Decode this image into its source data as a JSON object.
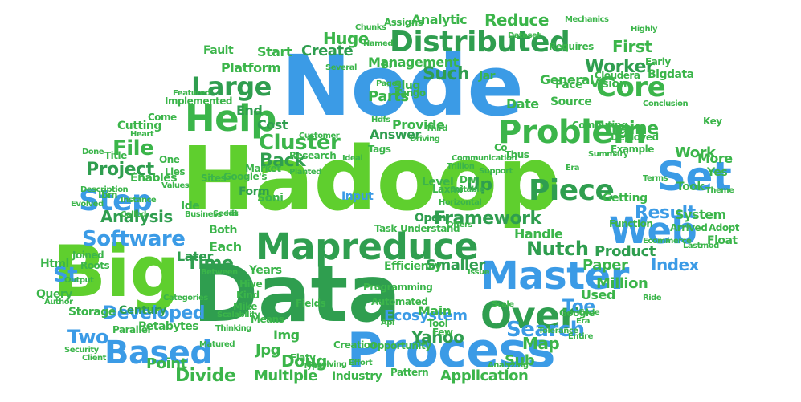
{
  "colors": {
    "green_bright": "#5fcf2e",
    "green_dark": "#2f9e4f",
    "green_mid": "#3bb54a",
    "blue": "#3b9be6",
    "blue_dark": "#2d7fd6",
    "background": "#ffffff"
  },
  "words": [
    {
      "text": "Hadoop",
      "color": "green_bright"
    },
    {
      "text": "Node",
      "color": "blue"
    },
    {
      "text": "Data",
      "color": "green_dark"
    },
    {
      "text": "Big",
      "color": "green_bright"
    },
    {
      "text": "Process",
      "color": "blue"
    },
    {
      "text": "Mapreduce",
      "color": "green_dark"
    },
    {
      "text": "Master",
      "color": "blue"
    },
    {
      "text": "Problem",
      "color": "green_mid"
    },
    {
      "text": "Help",
      "color": "green_mid"
    },
    {
      "text": "Set",
      "color": "blue"
    },
    {
      "text": "Web",
      "color": "blue"
    },
    {
      "text": "Over",
      "color": "green_dark"
    },
    {
      "text": "Distributed",
      "color": "green_dark"
    },
    {
      "text": "Step",
      "color": "blue"
    },
    {
      "text": "Based",
      "color": "blue"
    },
    {
      "text": "Piece",
      "color": "green_dark"
    },
    {
      "text": "Core",
      "color": "green_mid"
    },
    {
      "text": "Large",
      "color": "green_dark"
    },
    {
      "text": "Software",
      "color": "blue"
    },
    {
      "text": "Cluster",
      "color": "green_mid"
    },
    {
      "text": "File",
      "color": "green_mid"
    },
    {
      "text": "Nutch",
      "color": "green_dark"
    },
    {
      "text": "Search",
      "color": "blue"
    },
    {
      "text": "Framework",
      "color": "green_dark"
    },
    {
      "text": "Developed",
      "color": "blue"
    },
    {
      "text": "Project",
      "color": "green_dark"
    },
    {
      "text": "Engine",
      "color": "green_mid"
    },
    {
      "text": "Worker",
      "color": "green_dark"
    },
    {
      "text": "Result",
      "color": "blue"
    },
    {
      "text": "Reduce",
      "color": "green_mid"
    },
    {
      "text": "Huge",
      "color": "green_mid"
    },
    {
      "text": "Such",
      "color": "green_dark"
    },
    {
      "text": "First",
      "color": "green_mid"
    },
    {
      "text": "Back",
      "color": "green_dark"
    },
    {
      "text": "Time",
      "color": "green_dark"
    },
    {
      "text": "Parts",
      "color": "green_mid"
    },
    {
      "text": "Up",
      "color": "green_dark"
    },
    {
      "text": "Toe",
      "color": "blue"
    },
    {
      "text": "Map",
      "color": "green_mid"
    },
    {
      "text": "Divide",
      "color": "green_mid"
    },
    {
      "text": "Two",
      "color": "blue"
    },
    {
      "text": "Yahoo",
      "color": "green_dark"
    },
    {
      "text": "Sub",
      "color": "green_mid"
    },
    {
      "text": "Index",
      "color": "blue"
    },
    {
      "text": "St",
      "color": "blue"
    },
    {
      "text": "Ecosystem",
      "color": "blue"
    },
    {
      "text": "Doug",
      "color": "green_mid"
    },
    {
      "text": "Multiple",
      "color": "green_mid"
    },
    {
      "text": "Application",
      "color": "green_mid"
    },
    {
      "text": "Million",
      "color": "green_mid"
    },
    {
      "text": "Paper",
      "color": "green_mid"
    },
    {
      "text": "Product",
      "color": "green_dark"
    },
    {
      "text": "Smaller",
      "color": "green_dark"
    },
    {
      "text": "Handle",
      "color": "green_mid"
    },
    {
      "text": "Analysis",
      "color": "green_dark"
    },
    {
      "text": "Management",
      "color": "green_mid"
    },
    {
      "text": "Platform",
      "color": "green_mid"
    },
    {
      "text": "Create",
      "color": "green_dark"
    },
    {
      "text": "Start",
      "color": "green_mid"
    },
    {
      "text": "Provide",
      "color": "green_mid"
    },
    {
      "text": "Answer",
      "color": "green_dark"
    },
    {
      "text": "Work",
      "color": "green_mid"
    },
    {
      "text": "System",
      "color": "green_mid"
    },
    {
      "text": "Used",
      "color": "green_mid"
    },
    {
      "text": "Soni",
      "color": "green_mid"
    },
    {
      "text": "Level",
      "color": "green_mid"
    },
    {
      "text": "Input",
      "color": "blue"
    },
    {
      "text": "Jpg",
      "color": "green_mid"
    },
    {
      "text": "Img",
      "color": "green_mid"
    },
    {
      "text": "Point",
      "color": "green_mid"
    },
    {
      "text": "Industry",
      "color": "green_mid"
    },
    {
      "text": "Form",
      "color": "green_dark"
    },
    {
      "text": "Cost",
      "color": "green_dark"
    },
    {
      "text": "Date",
      "color": "green_mid"
    },
    {
      "text": "Efficiency",
      "color": "green_mid"
    },
    {
      "text": "Years",
      "color": "green_mid"
    },
    {
      "text": "Each",
      "color": "green_mid"
    },
    {
      "text": "Both",
      "color": "green_mid"
    },
    {
      "text": "Later",
      "color": "green_dark"
    },
    {
      "text": "Open",
      "color": "green_dark"
    },
    {
      "text": "Main",
      "color": "green_mid"
    },
    {
      "text": "Hive",
      "color": "green_mid"
    },
    {
      "text": "Kind",
      "color": "green_mid"
    },
    {
      "text": "Mike",
      "color": "green_mid"
    },
    {
      "text": "Storage",
      "color": "green_mid"
    },
    {
      "text": "Century",
      "color": "green_dark"
    },
    {
      "text": "Petabytes",
      "color": "green_mid"
    },
    {
      "text": "Parallel",
      "color": "green_mid"
    },
    {
      "text": "Query",
      "color": "green_mid"
    },
    {
      "text": "Html",
      "color": "green_mid"
    },
    {
      "text": "Tags",
      "color": "green_mid"
    },
    {
      "text": "Slug",
      "color": "green_mid"
    },
    {
      "text": "Tango",
      "color": "green_mid"
    },
    {
      "text": "End",
      "color": "green_dark"
    },
    {
      "text": "Fault",
      "color": "green_mid"
    },
    {
      "text": "Implemented",
      "color": "green_mid"
    },
    {
      "text": "Featured",
      "color": "green_mid"
    },
    {
      "text": "Cutting",
      "color": "green_mid"
    },
    {
      "text": "Come",
      "color": "green_mid"
    },
    {
      "text": "Enables",
      "color": "green_mid"
    },
    {
      "text": "Ide",
      "color": "green_mid"
    },
    {
      "text": "Jar",
      "color": "green_mid"
    },
    {
      "text": "General",
      "color": "green_mid"
    },
    {
      "text": "Vision",
      "color": "green_mid"
    },
    {
      "text": "Source",
      "color": "green_mid"
    },
    {
      "text": "Took",
      "color": "green_mid"
    },
    {
      "text": "More",
      "color": "green_mid"
    },
    {
      "text": "Yes",
      "color": "green_mid"
    },
    {
      "text": "Getting",
      "color": "green_mid"
    },
    {
      "text": "Function",
      "color": "green_mid"
    },
    {
      "text": "Bigdata",
      "color": "green_mid"
    },
    {
      "text": "Requires",
      "color": "green_mid"
    },
    {
      "text": "Analytic",
      "color": "green_mid"
    },
    {
      "text": "Assigns",
      "color": "green_mid"
    },
    {
      "text": "Sites",
      "color": "green_mid"
    },
    {
      "text": "Google's",
      "color": "green_mid"
    },
    {
      "text": "Lies",
      "color": "green_mid"
    },
    {
      "text": "One",
      "color": "green_mid"
    },
    {
      "text": "Title",
      "color": "green_mid"
    },
    {
      "text": "Done",
      "color": "green_mid"
    },
    {
      "text": "Research",
      "color": "green_mid"
    },
    {
      "text": "Market",
      "color": "green_mid"
    },
    {
      "text": "Understand",
      "color": "green_mid"
    },
    {
      "text": "Task",
      "color": "green_mid"
    },
    {
      "text": "Face",
      "color": "green_mid"
    },
    {
      "text": "Deployed",
      "color": "green_mid"
    },
    {
      "text": "Computing",
      "color": "green_mid"
    },
    {
      "text": "Thus",
      "color": "green_mid"
    },
    {
      "text": "Communication",
      "color": "green_mid"
    },
    {
      "text": "Support",
      "color": "green_mid"
    },
    {
      "text": "Trillion",
      "color": "green_mid"
    },
    {
      "text": "Laxmi",
      "color": "green_mid"
    },
    {
      "text": "Horizontal",
      "color": "green_mid"
    },
    {
      "text": "Offers",
      "color": "green_mid"
    },
    {
      "text": "Issue",
      "color": "green_mid"
    },
    {
      "text": "Google",
      "color": "green_mid"
    },
    {
      "text": "Tool",
      "color": "green_mid"
    },
    {
      "text": "Few",
      "color": "green_mid"
    },
    {
      "text": "Opportunity",
      "color": "green_mid"
    },
    {
      "text": "Pattern",
      "color": "green_mid"
    },
    {
      "text": "Analyzing",
      "color": "green_mid"
    },
    {
      "text": "Security",
      "color": "green_mid"
    },
    {
      "text": "Client",
      "color": "green_mid"
    },
    {
      "text": "Output",
      "color": "green_mid"
    },
    {
      "text": "Author",
      "color": "green_mid"
    },
    {
      "text": "Means",
      "color": "green_mid"
    },
    {
      "text": "Called",
      "color": "green_mid"
    },
    {
      "text": "Tolerance",
      "color": "green_mid"
    },
    {
      "text": "Float",
      "color": "green_mid"
    },
    {
      "text": "Adopt",
      "color": "green_mid"
    },
    {
      "text": "Arrived",
      "color": "green_mid"
    },
    {
      "text": "Cloudera",
      "color": "green_mid"
    },
    {
      "text": "Conclusion",
      "color": "green_mid"
    },
    {
      "text": "Summary",
      "color": "green_mid"
    },
    {
      "text": "Example",
      "color": "green_mid"
    },
    {
      "text": "Key",
      "color": "green_mid"
    },
    {
      "text": "Scalability",
      "color": "green_mid"
    },
    {
      "text": "Fields",
      "color": "green_mid"
    },
    {
      "text": "Categories",
      "color": "green_mid"
    },
    {
      "text": "Programming",
      "color": "green_mid"
    },
    {
      "text": "Automated",
      "color": "green_mid"
    },
    {
      "text": "Creation",
      "color": "green_mid"
    },
    {
      "text": "Flaty",
      "color": "green_mid"
    },
    {
      "text": "Type",
      "color": "green_mid"
    },
    {
      "text": "Effort",
      "color": "green_mid"
    },
    {
      "text": "Code",
      "color": "green_mid"
    },
    {
      "text": "Era",
      "color": "green_mid"
    },
    {
      "text": "Matured",
      "color": "green_mid"
    },
    {
      "text": "Ibm",
      "color": "green_mid"
    },
    {
      "text": "Evolved",
      "color": "green_mid"
    },
    {
      "text": "Joined",
      "color": "green_mid"
    },
    {
      "text": "Roots",
      "color": "green_mid"
    },
    {
      "text": "Business",
      "color": "green_mid"
    },
    {
      "text": "Instance",
      "color": "green_mid"
    },
    {
      "text": "Third",
      "color": "green_mid"
    },
    {
      "text": "Driving",
      "color": "green_mid"
    },
    {
      "text": "Ideal",
      "color": "green_mid"
    },
    {
      "text": "Customer",
      "color": "green_mid"
    },
    {
      "text": "Hdfs",
      "color": "green_mid"
    },
    {
      "text": "Several",
      "color": "green_mid"
    },
    {
      "text": "Heart",
      "color": "green_mid"
    },
    {
      "text": "Early",
      "color": "green_mid"
    },
    {
      "text": "Highly",
      "color": "green_mid"
    },
    {
      "text": "Theme",
      "color": "green_mid"
    },
    {
      "text": "Lastmod",
      "color": "green_mid"
    },
    {
      "text": "Ecommerce",
      "color": "green_mid"
    },
    {
      "text": "Ride",
      "color": "green_mid"
    },
    {
      "text": "Entire",
      "color": "green_mid"
    },
    {
      "text": "Terms",
      "color": "green_mid"
    },
    {
      "text": "Api",
      "color": "green_mid"
    },
    {
      "text": "Pages",
      "color": "green_mid"
    },
    {
      "text": "Dw",
      "color": "green_mid"
    },
    {
      "text": "Co",
      "color": "green_mid"
    },
    {
      "text": "Seeds",
      "color": "green_mid"
    },
    {
      "text": "Hit",
      "color": "green_mid"
    },
    {
      "text": "Bi",
      "color": "green_mid"
    },
    {
      "text": "Named",
      "color": "green_mid"
    },
    {
      "text": "Dataset",
      "color": "green_mid"
    },
    {
      "text": "Mechanics",
      "color": "green_mid"
    },
    {
      "text": "Chunks",
      "color": "green_mid"
    },
    {
      "text": "Scale",
      "color": "green_mid"
    },
    {
      "text": "Era",
      "color": "green_mid"
    },
    {
      "text": "Planted",
      "color": "green_mid"
    },
    {
      "text": "Values",
      "color": "green_mid"
    },
    {
      "text": "Description",
      "color": "green_mid"
    },
    {
      "text": "Suitable",
      "color": "green_mid"
    },
    {
      "text": "Between",
      "color": "green_mid"
    },
    {
      "text": "Thinking",
      "color": "green_mid"
    },
    {
      "text": "Involving",
      "color": "green_mid"
    }
  ]
}
